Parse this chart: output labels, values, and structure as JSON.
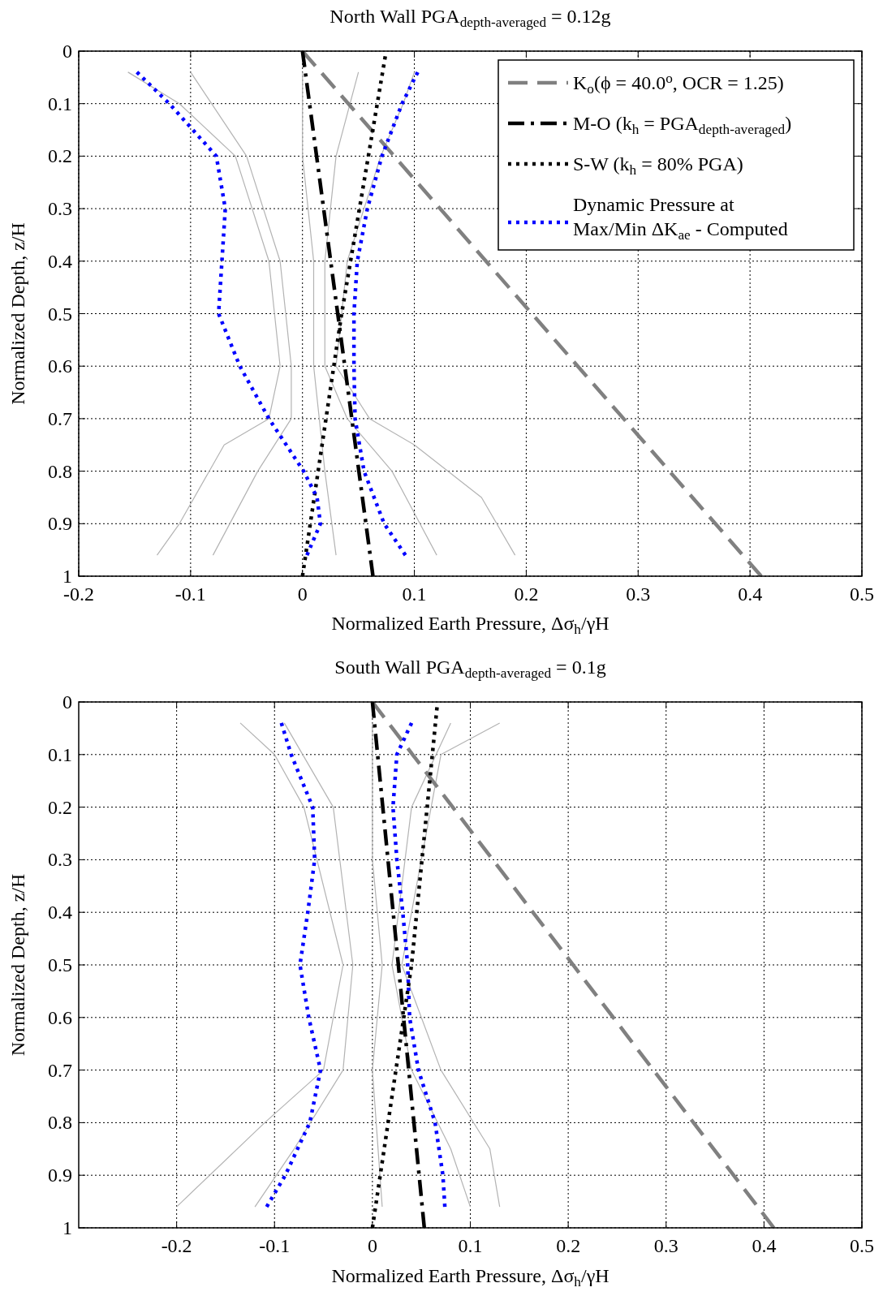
{
  "chart_data": [
    {
      "type": "line",
      "title": "North Wall PGA$_{depth-averaged}$ = 0.12g",
      "xlabel": "Normalized Earth Pressure, Δσ$_{h}$/γH",
      "ylabel": "Normalized Depth, z/H",
      "xlim": [
        -0.2,
        0.5
      ],
      "xticks": [
        -0.2,
        -0.1,
        0,
        0.1,
        0.2,
        0.3,
        0.4,
        0.5
      ],
      "ylim": [
        1,
        0
      ],
      "yticks": [
        0,
        0.1,
        0.2,
        0.3,
        0.4,
        0.5,
        0.6,
        0.7,
        0.8,
        0.9,
        1
      ],
      "grid": true,
      "legend": "top right",
      "series": [
        {
          "color": "#b3b3b3",
          "x": [
            -0.156,
            -0.11,
            -0.06,
            -0.03,
            -0.02,
            -0.03,
            -0.07,
            -0.11,
            -0.13
          ],
          "values": [
            0.04,
            0.1,
            0.2,
            0.4,
            0.6,
            0.7,
            0.75,
            0.9,
            0.96
          ]
        },
        {
          "color": "#b3b3b3",
          "x": [
            0.1,
            0.09,
            0.07,
            0.04,
            0.03,
            0.06,
            0.1,
            0.16,
            0.19
          ],
          "values": [
            0.04,
            0.1,
            0.2,
            0.4,
            0.6,
            0.7,
            0.75,
            0.85,
            0.96
          ]
        },
        {
          "color": "#b3b3b3",
          "x": [
            -0.1,
            -0.05,
            -0.02,
            -0.01,
            -0.01,
            -0.04,
            -0.08
          ],
          "values": [
            0.04,
            0.2,
            0.4,
            0.6,
            0.7,
            0.8,
            0.96
          ]
        },
        {
          "color": "#b3b3b3",
          "x": [
            0.05,
            0.03,
            0.02,
            0.02,
            0.04,
            0.08,
            0.12
          ],
          "values": [
            0.04,
            0.2,
            0.4,
            0.6,
            0.7,
            0.8,
            0.96
          ]
        },
        {
          "color": "#b3b3b3",
          "x": [
            0,
            0,
            0.01,
            0.01,
            0.02,
            0.03
          ],
          "values": [
            0.04,
            0.2,
            0.4,
            0.6,
            0.8,
            0.96
          ]
        },
        {
          "name": "K$_{o}$(ϕ = 40.0$^{o}$, OCR = 1.25)",
          "color": "#808080",
          "line_style": "dashed",
          "x": [
            0,
            0.41
          ],
          "values": [
            0,
            1
          ]
        },
        {
          "name": "M-O (k$_{h}$ = PGA$_{depth-averaged}$)",
          "color": "#000000",
          "line_style": "dashdot",
          "x": [
            0,
            0.063
          ],
          "values": [
            0,
            1
          ]
        },
        {
          "name": "S-W (k$_{h}$ = 80% PGA)",
          "color": "#000000",
          "line_style": "dotted",
          "x": [
            0.074,
            0.035,
            0
          ],
          "values": [
            0.01,
            0.5,
            1
          ]
        },
        {
          "name": "Dynamic Pressure at Max/Min ΔK$_{ae}$ - Computed",
          "color": "#0000ff",
          "line_style": "dotted",
          "x": [
            -0.148,
            -0.119,
            -0.077,
            -0.069,
            -0.072,
            -0.075,
            -0.056,
            -0.03,
            0.001,
            0.013,
            0.016,
            0.004
          ],
          "values": [
            0.04,
            0.1,
            0.2,
            0.3,
            0.4,
            0.5,
            0.6,
            0.7,
            0.8,
            0.85,
            0.9,
            0.96
          ]
        },
        {
          "color": "#0000ff",
          "line_style": "dotted",
          "x": [
            0.103,
            0.089,
            0.071,
            0.058,
            0.049,
            0.046,
            0.046,
            0.047,
            0.055,
            0.073,
            0.092
          ],
          "values": [
            0.04,
            0.1,
            0.2,
            0.3,
            0.4,
            0.5,
            0.6,
            0.7,
            0.8,
            0.9,
            0.96
          ]
        }
      ]
    },
    {
      "type": "line",
      "title": "South Wall PGA$_{depth-averaged}$ = 0.1g",
      "xlabel": "Normalized Earth Pressure, Δσ$_{h}$/γH",
      "ylabel": "Normalized Depth, z/H",
      "xlim": [
        -0.3,
        0.5
      ],
      "xticks": [
        -0.2,
        -0.1,
        0,
        0.1,
        0.2,
        0.3,
        0.4,
        0.5
      ],
      "ylim": [
        1,
        0
      ],
      "yticks": [
        0,
        0.1,
        0.2,
        0.3,
        0.4,
        0.5,
        0.6,
        0.7,
        0.8,
        0.9,
        1
      ],
      "grid": true,
      "series": [
        {
          "color": "#b3b3b3",
          "x": [
            -0.135,
            -0.1,
            -0.07,
            -0.03,
            -0.05,
            -0.11,
            -0.2
          ],
          "values": [
            0.04,
            0.1,
            0.2,
            0.5,
            0.7,
            0.8,
            0.96
          ]
        },
        {
          "color": "#b3b3b3",
          "x": [
            0.13,
            0.07,
            0.05,
            0.03,
            0.07,
            0.12,
            0.13
          ],
          "values": [
            0.04,
            0.1,
            0.3,
            0.5,
            0.7,
            0.85,
            0.96
          ]
        },
        {
          "color": "#b3b3b3",
          "x": [
            -0.09,
            -0.04,
            -0.02,
            -0.03,
            -0.08,
            -0.12
          ],
          "values": [
            0.04,
            0.2,
            0.5,
            0.7,
            0.85,
            0.96
          ]
        },
        {
          "color": "#b3b3b3",
          "x": [
            0.08,
            0.04,
            0.02,
            0.04,
            0.08,
            0.1
          ],
          "values": [
            0.04,
            0.2,
            0.5,
            0.7,
            0.85,
            0.96
          ]
        },
        {
          "color": "#b3b3b3",
          "x": [
            0,
            0,
            0.01,
            0,
            0.01
          ],
          "values": [
            0.04,
            0.3,
            0.5,
            0.7,
            0.96
          ]
        },
        {
          "color": "#808080",
          "line_style": "dashed",
          "x": [
            0,
            0.41
          ],
          "values": [
            0,
            1
          ]
        },
        {
          "color": "#000000",
          "line_style": "dashdot",
          "x": [
            0,
            0.053
          ],
          "values": [
            0,
            1
          ]
        },
        {
          "color": "#000000",
          "line_style": "dotted",
          "x": [
            0.066,
            0.04,
            0
          ],
          "values": [
            0.01,
            0.5,
            1
          ]
        },
        {
          "color": "#0000ff",
          "line_style": "dotted",
          "x": [
            -0.093,
            -0.083,
            -0.061,
            -0.059,
            -0.066,
            -0.074,
            -0.065,
            -0.053,
            -0.064,
            -0.089,
            -0.108
          ],
          "values": [
            0.04,
            0.1,
            0.2,
            0.3,
            0.4,
            0.5,
            0.6,
            0.7,
            0.8,
            0.9,
            0.96
          ]
        },
        {
          "color": "#0000ff",
          "line_style": "dotted",
          "x": [
            0.04,
            0.025,
            0.021,
            0.025,
            0.031,
            0.036,
            0.038,
            0.047,
            0.064,
            0.072,
            0.074
          ],
          "values": [
            0.04,
            0.1,
            0.2,
            0.3,
            0.4,
            0.5,
            0.6,
            0.7,
            0.8,
            0.9,
            0.96
          ]
        }
      ]
    }
  ]
}
